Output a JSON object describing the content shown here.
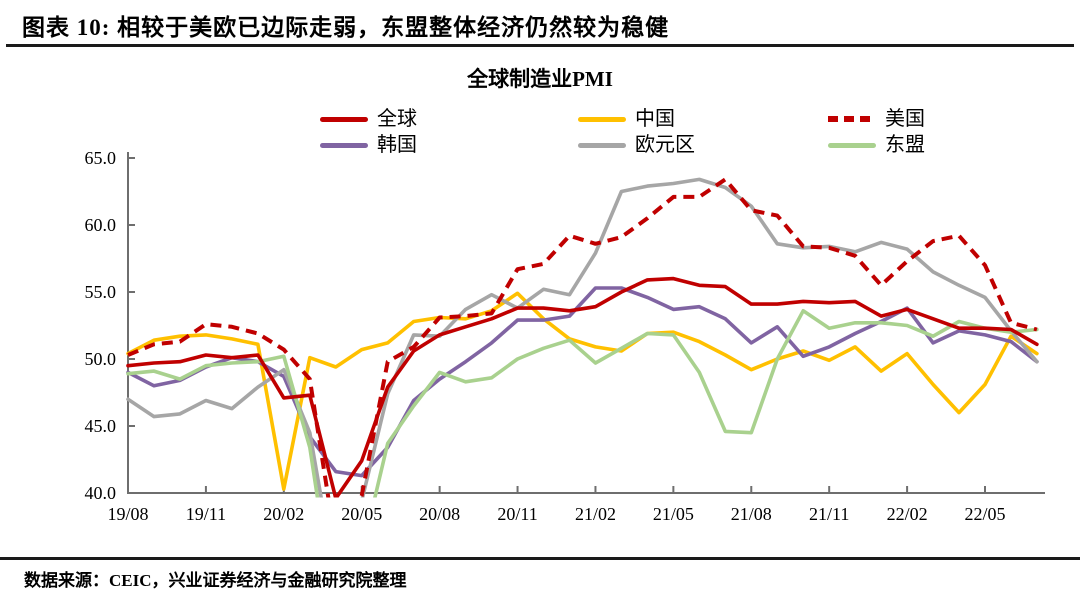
{
  "header": {
    "title": "图表 10: 相较于美欧已边际走弱，东盟整体经济仍然较为稳健"
  },
  "footer": {
    "source": "数据来源：CEIC，兴业证券经济与金融研究院整理"
  },
  "chart_data": {
    "type": "line",
    "title": "全球制造业PMI",
    "xlabel": "",
    "ylabel": "",
    "ylim": [
      40.0,
      65.0
    ],
    "y_ticks": [
      40.0,
      45.0,
      50.0,
      55.0,
      60.0,
      65.0
    ],
    "grid": false,
    "legend_position": "top",
    "x_tick_every": 3,
    "x": [
      "19/08",
      "19/09",
      "19/10",
      "19/11",
      "19/12",
      "20/01",
      "20/02",
      "20/03",
      "20/04",
      "20/05",
      "20/06",
      "20/07",
      "20/08",
      "20/09",
      "20/10",
      "20/11",
      "20/12",
      "21/01",
      "21/02",
      "21/03",
      "21/04",
      "21/05",
      "21/06",
      "21/07",
      "21/08",
      "21/09",
      "21/10",
      "21/11",
      "21/12",
      "22/01",
      "22/02",
      "22/03",
      "22/04",
      "22/05",
      "22/06",
      "22/07"
    ],
    "x_tick_labels": [
      "19/08",
      "19/11",
      "20/02",
      "20/05",
      "20/08",
      "20/11",
      "21/02",
      "21/05",
      "21/08",
      "21/11",
      "22/02",
      "22/05"
    ],
    "series": [
      {
        "key": "global",
        "name": "全球",
        "color": "#C00000",
        "dash": false,
        "values": [
          49.5,
          49.7,
          49.8,
          50.3,
          50.1,
          50.3,
          47.1,
          47.3,
          39.6,
          42.4,
          47.9,
          50.6,
          51.8,
          52.4,
          53.0,
          53.8,
          53.8,
          53.6,
          53.9,
          55.0,
          55.9,
          56.0,
          55.5,
          55.4,
          54.1,
          54.1,
          54.3,
          54.2,
          54.3,
          53.2,
          53.7,
          53.0,
          52.3,
          52.3,
          52.2,
          51.1
        ]
      },
      {
        "key": "china",
        "name": "中国",
        "color": "#FFC000",
        "dash": false,
        "values": [
          50.4,
          51.4,
          51.7,
          51.8,
          51.5,
          51.1,
          40.3,
          50.1,
          49.4,
          50.7,
          51.2,
          52.8,
          53.1,
          53.0,
          53.6,
          54.9,
          53.0,
          51.5,
          50.9,
          50.6,
          51.9,
          52.0,
          51.3,
          50.3,
          49.2,
          50.0,
          50.6,
          49.9,
          50.9,
          49.1,
          50.4,
          48.1,
          46.0,
          48.1,
          51.7,
          50.4
        ]
      },
      {
        "key": "us",
        "name": "美国",
        "color": "#C00000",
        "dash": true,
        "values": [
          50.3,
          51.1,
          51.3,
          52.6,
          52.4,
          51.9,
          50.7,
          48.5,
          36.1,
          39.8,
          49.8,
          50.9,
          53.1,
          53.2,
          53.4,
          56.7,
          57.1,
          59.2,
          58.6,
          59.1,
          60.5,
          62.1,
          62.1,
          63.4,
          61.1,
          60.7,
          58.4,
          58.3,
          57.7,
          55.5,
          57.3,
          58.8,
          59.2,
          57.0,
          52.7,
          52.2
        ]
      },
      {
        "key": "korea",
        "name": "韩国",
        "color": "#8064A2",
        "dash": false,
        "values": [
          49.0,
          48.0,
          48.4,
          49.4,
          50.1,
          49.8,
          48.7,
          44.2,
          41.6,
          41.3,
          43.4,
          46.9,
          48.5,
          49.8,
          51.2,
          52.9,
          52.9,
          53.2,
          55.3,
          55.3,
          54.6,
          53.7,
          53.9,
          53.0,
          51.2,
          52.4,
          50.2,
          50.9,
          51.9,
          52.8,
          53.8,
          51.2,
          52.1,
          51.8,
          51.3,
          49.8
        ]
      },
      {
        "key": "eurozone",
        "name": "欧元区",
        "color": "#A6A6A6",
        "dash": false,
        "values": [
          47.0,
          45.7,
          45.9,
          46.9,
          46.3,
          47.9,
          49.2,
          44.5,
          33.4,
          39.4,
          47.4,
          51.8,
          51.7,
          53.7,
          54.8,
          53.8,
          55.2,
          54.8,
          57.9,
          62.5,
          62.9,
          63.1,
          63.4,
          62.8,
          61.4,
          58.6,
          58.3,
          58.4,
          58.0,
          58.7,
          58.2,
          56.5,
          55.5,
          54.6,
          52.1,
          49.8
        ]
      },
      {
        "key": "asean",
        "name": "东盟",
        "color": "#A9D18E",
        "dash": false,
        "values": [
          48.9,
          49.1,
          48.5,
          49.5,
          49.7,
          49.8,
          50.2,
          43.4,
          30.7,
          35.5,
          43.7,
          46.5,
          49.0,
          48.3,
          48.6,
          50.0,
          50.8,
          51.4,
          49.7,
          50.8,
          51.9,
          51.8,
          49.0,
          44.6,
          44.5,
          50.0,
          53.6,
          52.3,
          52.7,
          52.7,
          52.5,
          51.7,
          52.8,
          52.3,
          52.0,
          52.2
        ]
      }
    ]
  }
}
